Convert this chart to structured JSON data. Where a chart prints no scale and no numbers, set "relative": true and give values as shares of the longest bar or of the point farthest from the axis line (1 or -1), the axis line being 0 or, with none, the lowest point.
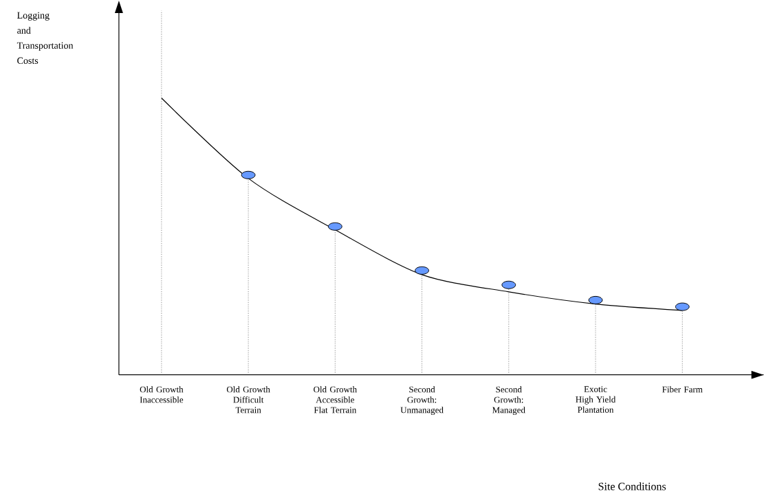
{
  "chart_data": {
    "type": "line",
    "relative": true,
    "annotations": [
      "Logging and Transportation Costs",
      "Site Conditions"
    ],
    "categories": [
      "Old Growth Inaccessible",
      "Old Growth Difficult Terrain",
      "Old  Growth Accessible Flat Terrain",
      "Second Growth: Unmanaged",
      "Second Growth: Managed",
      "Exotic High Yield Plantation",
      "Fiber Farm"
    ],
    "series": [
      {
        "color": "#000000",
        "marker": "none",
        "line_style": "solid",
        "values": [
          1,
          0.71,
          0.524,
          0.362,
          0.3,
          0.256,
          0.233
        ]
      },
      {
        "type": "lollipop",
        "color": "#6699ff",
        "marker": "circle",
        "line_style": "dotted",
        "values": [
          null,
          0.722,
          0.536,
          0.377,
          0.325,
          0.27,
          0.246
        ]
      }
    ]
  }
}
